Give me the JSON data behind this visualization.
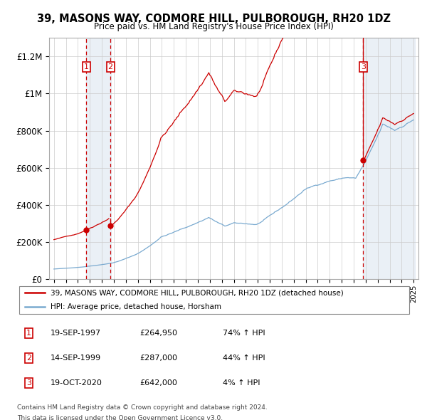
{
  "title": "39, MASONS WAY, CODMORE HILL, PULBOROUGH, RH20 1DZ",
  "subtitle": "Price paid vs. HM Land Registry's House Price Index (HPI)",
  "sale1_date": "19-SEP-1997",
  "sale1_price": 264950,
  "sale1_pct": "74%",
  "sale2_date": "14-SEP-1999",
  "sale2_price": 287000,
  "sale2_pct": "44%",
  "sale3_date": "19-OCT-2020",
  "sale3_price": 642000,
  "sale3_pct": "4%",
  "legend1": "39, MASONS WAY, CODMORE HILL, PULBOROUGH, RH20 1DZ (detached house)",
  "legend2": "HPI: Average price, detached house, Horsham",
  "footer1": "Contains HM Land Registry data © Crown copyright and database right 2024.",
  "footer2": "This data is licensed under the Open Government Licence v3.0.",
  "red_color": "#cc0000",
  "blue_color": "#7aaad0",
  "bg_highlight": "#dce6f0",
  "ylim_max": 1300000,
  "ylabel_ticks": [
    0,
    200000,
    400000,
    600000,
    800000,
    1000000,
    1200000
  ],
  "ylabel_labels": [
    "£0",
    "£200K",
    "£400K",
    "£600K",
    "£800K",
    "£1M",
    "£1.2M"
  ]
}
